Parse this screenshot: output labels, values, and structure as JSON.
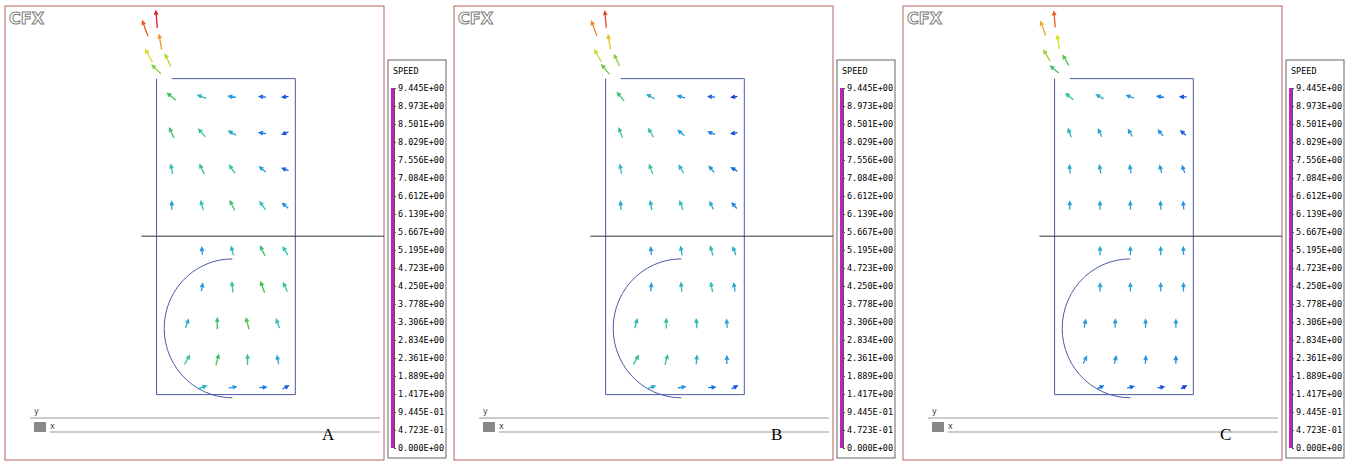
{
  "chart_data": [
    {
      "type": "vector_field",
      "logo": "CFX",
      "label": "A",
      "xlim": [
        0,
        1
      ],
      "ylim": [
        0,
        1
      ],
      "tick_labels": false,
      "axis_labels": {
        "x": "x",
        "y": "y"
      },
      "colorbar": {
        "title": "SPEED",
        "range": [
          0,
          9.445
        ],
        "ticks": [
          {
            "value": 9.445,
            "label": "9.445E+00"
          },
          {
            "value": 8.973,
            "label": "8.973E+00"
          },
          {
            "value": 8.501,
            "label": "8.501E+00"
          },
          {
            "value": 8.029,
            "label": "8.029E+00"
          },
          {
            "value": 7.556,
            "label": "7.556E+00"
          },
          {
            "value": 7.084,
            "label": "7.084E+00"
          },
          {
            "value": 6.612,
            "label": "6.612E+00"
          },
          {
            "value": 6.139,
            "label": "6.139E+00"
          },
          {
            "value": 5.667,
            "label": "5.667E+00"
          },
          {
            "value": 5.195,
            "label": "5.195E+00"
          },
          {
            "value": 4.723,
            "label": "4.723E+00"
          },
          {
            "value": 4.25,
            "label": "4.250E+00"
          },
          {
            "value": 3.778,
            "label": "3.778E+00"
          },
          {
            "value": 3.306,
            "label": "3.306E+00"
          },
          {
            "value": 2.834,
            "label": "2.834E+00"
          },
          {
            "value": 2.361,
            "label": "2.361E+00"
          },
          {
            "value": 1.889,
            "label": "1.889E+00"
          },
          {
            "value": 1.417,
            "label": "1.417E+00"
          },
          {
            "value": 0.9445,
            "label": "9.445E-01"
          },
          {
            "value": 0.4723,
            "label": "4.723E-01"
          },
          {
            "value": 0,
            "label": "0.000E+00"
          }
        ]
      },
      "vectors": [
        [
          0.4,
          0.97,
          95,
          7.5
        ],
        [
          0.37,
          0.95,
          110,
          6.8
        ],
        [
          0.41,
          0.92,
          100,
          6.2
        ],
        [
          0.38,
          0.89,
          120,
          5.6
        ],
        [
          0.43,
          0.88,
          115,
          5.0
        ],
        [
          0.4,
          0.86,
          135,
          4.5
        ],
        [
          0.44,
          0.8,
          140,
          3.6
        ],
        [
          0.52,
          0.8,
          160,
          2.4
        ],
        [
          0.6,
          0.8,
          170,
          1.6
        ],
        [
          0.68,
          0.8,
          175,
          1.0
        ],
        [
          0.74,
          0.8,
          190,
          0.7
        ],
        [
          0.44,
          0.72,
          115,
          3.5
        ],
        [
          0.52,
          0.72,
          130,
          3.0
        ],
        [
          0.6,
          0.72,
          150,
          2.0
        ],
        [
          0.68,
          0.72,
          170,
          1.2
        ],
        [
          0.74,
          0.72,
          200,
          0.8
        ],
        [
          0.44,
          0.64,
          100,
          2.6
        ],
        [
          0.52,
          0.64,
          115,
          3.2
        ],
        [
          0.6,
          0.64,
          125,
          2.8
        ],
        [
          0.68,
          0.64,
          140,
          1.8
        ],
        [
          0.74,
          0.64,
          160,
          1.0
        ],
        [
          0.44,
          0.56,
          90,
          1.8
        ],
        [
          0.52,
          0.56,
          105,
          2.6
        ],
        [
          0.6,
          0.56,
          115,
          3.4
        ],
        [
          0.68,
          0.56,
          125,
          2.6
        ],
        [
          0.74,
          0.56,
          140,
          1.5
        ],
        [
          0.52,
          0.46,
          95,
          1.4
        ],
        [
          0.6,
          0.46,
          105,
          2.4
        ],
        [
          0.68,
          0.46,
          115,
          3.4
        ],
        [
          0.74,
          0.46,
          120,
          2.6
        ],
        [
          0.52,
          0.38,
          80,
          1.6
        ],
        [
          0.6,
          0.38,
          95,
          3.0
        ],
        [
          0.68,
          0.38,
          110,
          3.8
        ],
        [
          0.74,
          0.38,
          115,
          2.8
        ],
        [
          0.48,
          0.3,
          70,
          2.2
        ],
        [
          0.56,
          0.3,
          90,
          3.6
        ],
        [
          0.64,
          0.3,
          105,
          3.9
        ],
        [
          0.72,
          0.3,
          110,
          2.6
        ],
        [
          0.48,
          0.22,
          60,
          3.2
        ],
        [
          0.56,
          0.22,
          75,
          3.6
        ],
        [
          0.64,
          0.22,
          90,
          3.0
        ],
        [
          0.72,
          0.22,
          100,
          2.0
        ],
        [
          0.52,
          0.16,
          20,
          2.2
        ],
        [
          0.6,
          0.16,
          10,
          1.6
        ],
        [
          0.68,
          0.16,
          5,
          1.2
        ],
        [
          0.74,
          0.16,
          30,
          0.9
        ]
      ]
    },
    {
      "type": "vector_field",
      "logo": "CFX",
      "label": "B",
      "xlim": [
        0,
        1
      ],
      "ylim": [
        0,
        1
      ],
      "tick_labels": false,
      "axis_labels": {
        "x": "x",
        "y": "y"
      },
      "colorbar": {
        "title": "SPEED",
        "range": [
          0,
          9.445
        ],
        "ticks": [
          {
            "value": 9.445,
            "label": "9.445E+00"
          },
          {
            "value": 8.973,
            "label": "8.973E+00"
          },
          {
            "value": 8.501,
            "label": "8.501E+00"
          },
          {
            "value": 8.029,
            "label": "8.029E+00"
          },
          {
            "value": 7.556,
            "label": "7.556E+00"
          },
          {
            "value": 7.084,
            "label": "7.084E+00"
          },
          {
            "value": 6.612,
            "label": "6.612E+00"
          },
          {
            "value": 6.139,
            "label": "6.139E+00"
          },
          {
            "value": 5.667,
            "label": "5.667E+00"
          },
          {
            "value": 5.195,
            "label": "5.195E+00"
          },
          {
            "value": 4.723,
            "label": "4.723E+00"
          },
          {
            "value": 4.25,
            "label": "4.250E+00"
          },
          {
            "value": 3.778,
            "label": "3.778E+00"
          },
          {
            "value": 3.306,
            "label": "3.306E+00"
          },
          {
            "value": 2.834,
            "label": "2.834E+00"
          },
          {
            "value": 2.361,
            "label": "2.361E+00"
          },
          {
            "value": 1.889,
            "label": "1.889E+00"
          },
          {
            "value": 1.417,
            "label": "1.417E+00"
          },
          {
            "value": 0.9445,
            "label": "9.445E-01"
          },
          {
            "value": 0.4723,
            "label": "4.723E-01"
          },
          {
            "value": 0,
            "label": "0.000E+00"
          }
        ]
      },
      "vectors": [
        [
          0.4,
          0.97,
          95,
          7.0
        ],
        [
          0.37,
          0.95,
          110,
          6.4
        ],
        [
          0.41,
          0.92,
          100,
          5.8
        ],
        [
          0.38,
          0.89,
          120,
          5.2
        ],
        [
          0.43,
          0.88,
          115,
          4.6
        ],
        [
          0.4,
          0.86,
          130,
          4.2
        ],
        [
          0.44,
          0.8,
          130,
          3.4
        ],
        [
          0.52,
          0.8,
          150,
          2.3
        ],
        [
          0.6,
          0.8,
          165,
          1.5
        ],
        [
          0.68,
          0.8,
          175,
          1.0
        ],
        [
          0.74,
          0.8,
          190,
          0.6
        ],
        [
          0.44,
          0.72,
          110,
          3.2
        ],
        [
          0.52,
          0.72,
          120,
          2.8
        ],
        [
          0.6,
          0.72,
          140,
          1.9
        ],
        [
          0.68,
          0.72,
          160,
          1.2
        ],
        [
          0.74,
          0.72,
          190,
          0.7
        ],
        [
          0.44,
          0.64,
          100,
          2.6
        ],
        [
          0.52,
          0.64,
          110,
          2.8
        ],
        [
          0.6,
          0.64,
          120,
          2.4
        ],
        [
          0.68,
          0.64,
          130,
          1.7
        ],
        [
          0.74,
          0.64,
          150,
          1.0
        ],
        [
          0.44,
          0.56,
          95,
          2.0
        ],
        [
          0.52,
          0.56,
          100,
          2.4
        ],
        [
          0.6,
          0.56,
          110,
          2.6
        ],
        [
          0.68,
          0.56,
          115,
          2.0
        ],
        [
          0.74,
          0.56,
          130,
          1.3
        ],
        [
          0.52,
          0.46,
          95,
          1.6
        ],
        [
          0.6,
          0.46,
          100,
          2.2
        ],
        [
          0.68,
          0.46,
          105,
          2.5
        ],
        [
          0.74,
          0.46,
          110,
          2.0
        ],
        [
          0.52,
          0.38,
          85,
          1.8
        ],
        [
          0.6,
          0.38,
          95,
          2.4
        ],
        [
          0.68,
          0.38,
          100,
          2.6
        ],
        [
          0.74,
          0.38,
          100,
          2.0
        ],
        [
          0.48,
          0.3,
          75,
          2.4
        ],
        [
          0.56,
          0.3,
          90,
          2.8
        ],
        [
          0.64,
          0.3,
          95,
          2.4
        ],
        [
          0.72,
          0.3,
          95,
          1.8
        ],
        [
          0.48,
          0.22,
          60,
          3.0
        ],
        [
          0.56,
          0.22,
          75,
          3.0
        ],
        [
          0.64,
          0.22,
          85,
          2.2
        ],
        [
          0.72,
          0.22,
          90,
          1.6
        ],
        [
          0.52,
          0.16,
          20,
          2.0
        ],
        [
          0.6,
          0.16,
          10,
          1.5
        ],
        [
          0.68,
          0.16,
          5,
          1.1
        ],
        [
          0.74,
          0.16,
          30,
          0.8
        ]
      ]
    },
    {
      "type": "vector_field",
      "logo": "CFX",
      "label": "C",
      "xlim": [
        0,
        1
      ],
      "ylim": [
        0,
        1
      ],
      "tick_labels": false,
      "axis_labels": {
        "x": "x",
        "y": "y"
      },
      "colorbar": {
        "title": "SPEED",
        "range": [
          0,
          9.445
        ],
        "ticks": [
          {
            "value": 9.445,
            "label": "9.445E+00"
          },
          {
            "value": 8.973,
            "label": "8.973E+00"
          },
          {
            "value": 8.501,
            "label": "8.501E+00"
          },
          {
            "value": 8.029,
            "label": "8.029E+00"
          },
          {
            "value": 7.556,
            "label": "7.556E+00"
          },
          {
            "value": 7.084,
            "label": "7.084E+00"
          },
          {
            "value": 6.612,
            "label": "6.612E+00"
          },
          {
            "value": 6.139,
            "label": "6.139E+00"
          },
          {
            "value": 5.667,
            "label": "5.667E+00"
          },
          {
            "value": 5.195,
            "label": "5.195E+00"
          },
          {
            "value": 4.723,
            "label": "4.723E+00"
          },
          {
            "value": 4.25,
            "label": "4.250E+00"
          },
          {
            "value": 3.778,
            "label": "3.778E+00"
          },
          {
            "value": 3.306,
            "label": "3.306E+00"
          },
          {
            "value": 2.834,
            "label": "2.834E+00"
          },
          {
            "value": 2.361,
            "label": "2.361E+00"
          },
          {
            "value": 1.889,
            "label": "1.889E+00"
          },
          {
            "value": 1.417,
            "label": "1.417E+00"
          },
          {
            "value": 0.9445,
            "label": "9.445E-01"
          },
          {
            "value": 0.4723,
            "label": "4.723E-01"
          },
          {
            "value": 0,
            "label": "0.000E+00"
          }
        ]
      },
      "vectors": [
        [
          0.4,
          0.97,
          95,
          6.8
        ],
        [
          0.37,
          0.95,
          110,
          6.0
        ],
        [
          0.41,
          0.92,
          100,
          5.4
        ],
        [
          0.38,
          0.89,
          120,
          4.8
        ],
        [
          0.43,
          0.88,
          120,
          4.0
        ],
        [
          0.4,
          0.86,
          140,
          3.4
        ],
        [
          0.44,
          0.8,
          140,
          2.8
        ],
        [
          0.52,
          0.8,
          150,
          2.0
        ],
        [
          0.6,
          0.8,
          160,
          1.6
        ],
        [
          0.68,
          0.8,
          170,
          1.2
        ],
        [
          0.74,
          0.8,
          180,
          0.8
        ],
        [
          0.44,
          0.72,
          110,
          2.4
        ],
        [
          0.52,
          0.72,
          115,
          2.0
        ],
        [
          0.6,
          0.72,
          120,
          1.8
        ],
        [
          0.68,
          0.72,
          130,
          1.5
        ],
        [
          0.74,
          0.72,
          140,
          1.0
        ],
        [
          0.44,
          0.64,
          95,
          2.0
        ],
        [
          0.52,
          0.64,
          100,
          1.9
        ],
        [
          0.6,
          0.64,
          100,
          1.8
        ],
        [
          0.68,
          0.64,
          105,
          1.7
        ],
        [
          0.74,
          0.64,
          110,
          1.4
        ],
        [
          0.44,
          0.56,
          90,
          1.9
        ],
        [
          0.52,
          0.56,
          92,
          1.9
        ],
        [
          0.6,
          0.56,
          92,
          1.9
        ],
        [
          0.68,
          0.56,
          95,
          1.8
        ],
        [
          0.74,
          0.56,
          95,
          1.6
        ],
        [
          0.52,
          0.46,
          90,
          1.9
        ],
        [
          0.6,
          0.46,
          90,
          1.9
        ],
        [
          0.68,
          0.46,
          90,
          1.9
        ],
        [
          0.74,
          0.46,
          92,
          1.8
        ],
        [
          0.52,
          0.38,
          88,
          1.8
        ],
        [
          0.6,
          0.38,
          90,
          1.9
        ],
        [
          0.68,
          0.38,
          90,
          1.9
        ],
        [
          0.74,
          0.38,
          90,
          1.8
        ],
        [
          0.48,
          0.3,
          80,
          1.6
        ],
        [
          0.56,
          0.3,
          88,
          1.8
        ],
        [
          0.64,
          0.3,
          90,
          1.8
        ],
        [
          0.72,
          0.3,
          90,
          1.7
        ],
        [
          0.48,
          0.22,
          65,
          1.6
        ],
        [
          0.56,
          0.22,
          75,
          1.5
        ],
        [
          0.64,
          0.22,
          85,
          1.4
        ],
        [
          0.72,
          0.22,
          90,
          1.3
        ],
        [
          0.52,
          0.16,
          25,
          1.2
        ],
        [
          0.6,
          0.16,
          15,
          1.0
        ],
        [
          0.68,
          0.16,
          10,
          0.8
        ],
        [
          0.74,
          0.16,
          30,
          0.6
        ]
      ]
    }
  ]
}
